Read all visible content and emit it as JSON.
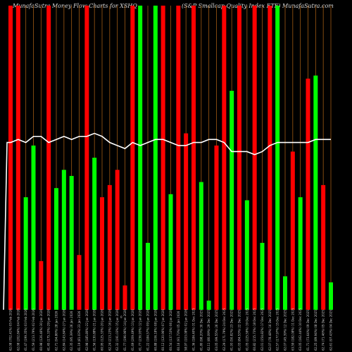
{
  "chart_data": {
    "type": "bar",
    "title_left": "MunafaSutra  Money Flow  Charts for XSHQ",
    "title_right": "(S&P Smallcap Quality Index ETF) MunafaSutra.com",
    "axis_marker": "0",
    "colors": {
      "background": "#000000",
      "up": "#00ff00",
      "down": "#ff0000",
      "grid": "#a05a14",
      "line": "#ffffff"
    },
    "ylim": [
      0,
      100
    ],
    "categories": [
      "62.08 (702.41%) 05 Feb 2026",
      "62.08 (202.84%) 04 Feb 2026",
      "61.47 (199.35%) 03 Feb 2026",
      "61.59 (213.79%) 02 Feb 2026",
      "60.98 (126.46%) 30 Jan 2026",
      "61.45 (175.33%) 29 Jan 2026",
      "62.71 (94.86%) 28 Jan 2026",
      "62.84 (143.84%) 27 Jan 2026",
      "62.35 (95.39%) 26 Jan 2026",
      "61.19 (81.03%) 23 Jan 2026",
      "62.98 (185.80%) 22 Jan 2026",
      "61.56 (130.88%) 21 Jan 2026",
      "60.95 (125.33%) 20 Jan 2026",
      "62.24 (213.23%) 16 Jan 2026",
      "62.32 (191.03%) 15 Jan 2026",
      "61.77 (196.96%) 14 Jan 2026",
      "61.69 (209.49%) 13 Jan 2026",
      "61.77 (236.93%) 12 Jan 2026",
      "61.22 (184.57%) 09 Jan 2026",
      "60.88 (106.18%) 08 Jan 2026",
      "60.12 (120.96%) 07 Jan 2026",
      "60.54 (137.53%) 06 Jan 2026",
      "60.16 (91.73%) 05 Jan 2026",
      "58.97 (103.08%) 02 Jan 2026",
      "61.36 (184.40%) 31 Dec 2025",
      "61.80 (98.20%) 30 Dec 2025",
      "62.11 (80.09%) 29 Dec 2025",
      "63.05 (99.55%) 26 Dec 2025",
      "62.29 (171.79%) 24 Dec 2025",
      "61.93 (50.82%) 23 Dec 2025",
      "61.03 (84.53%) 22 Dec 2025",
      "61.05 (225.59%) 19 Dec 2025",
      "60.82 (215.73%) 18 Dec 2025",
      "62.01 (154.82%) 17 Dec 2025",
      "62.07 (78.48%) 16 Dec 2025",
      "62.57 (177.97%) 15 Dec 2025",
      "62.07 (45.39%) 12 Dec 2025",
      "63.59 (182.08%) 11 Dec 2025",
      "63.05 (162.44%) 10 Dec 2025",
      "61.71 (73.64%) 09 Dec 2025",
      "62.25 (89.94%) 08 Dec 2025",
      "62.74 (71.46%) 05 Dec 2025",
      "62.61 (97.43%) 04 Dec 2025"
    ],
    "series": [
      {
        "role": "bars",
        "values": [
          100,
          100,
          37,
          54,
          16,
          100,
          40,
          46,
          44,
          18,
          100,
          50,
          37,
          41,
          46,
          8,
          100,
          100,
          22,
          100,
          100,
          38,
          100,
          58,
          100,
          42,
          3,
          54,
          100,
          72,
          100,
          36,
          100,
          22,
          100,
          100,
          11,
          52,
          37,
          76,
          77,
          41,
          9
        ],
        "colors": [
          "r",
          "r",
          "g",
          "g",
          "r",
          "r",
          "g",
          "g",
          "g",
          "r",
          "r",
          "g",
          "r",
          "r",
          "r",
          "r",
          "r",
          "g",
          "g",
          "g",
          "r",
          "g",
          "r",
          "r",
          "r",
          "g",
          "g",
          "r",
          "r",
          "g",
          "r",
          "g",
          "r",
          "g",
          "r",
          "g",
          "g",
          "r",
          "g",
          "r",
          "g",
          "r",
          "g"
        ]
      },
      {
        "role": "line",
        "values": [
          55,
          56,
          55,
          57,
          57,
          55,
          56,
          57,
          56,
          57,
          57,
          58,
          57,
          55,
          54,
          53,
          55,
          54,
          55,
          56,
          56,
          55,
          54,
          54,
          55,
          55,
          56,
          56,
          55,
          52,
          52,
          52,
          51,
          52,
          54,
          55,
          55,
          55,
          55,
          55,
          56,
          56,
          56
        ]
      }
    ]
  }
}
